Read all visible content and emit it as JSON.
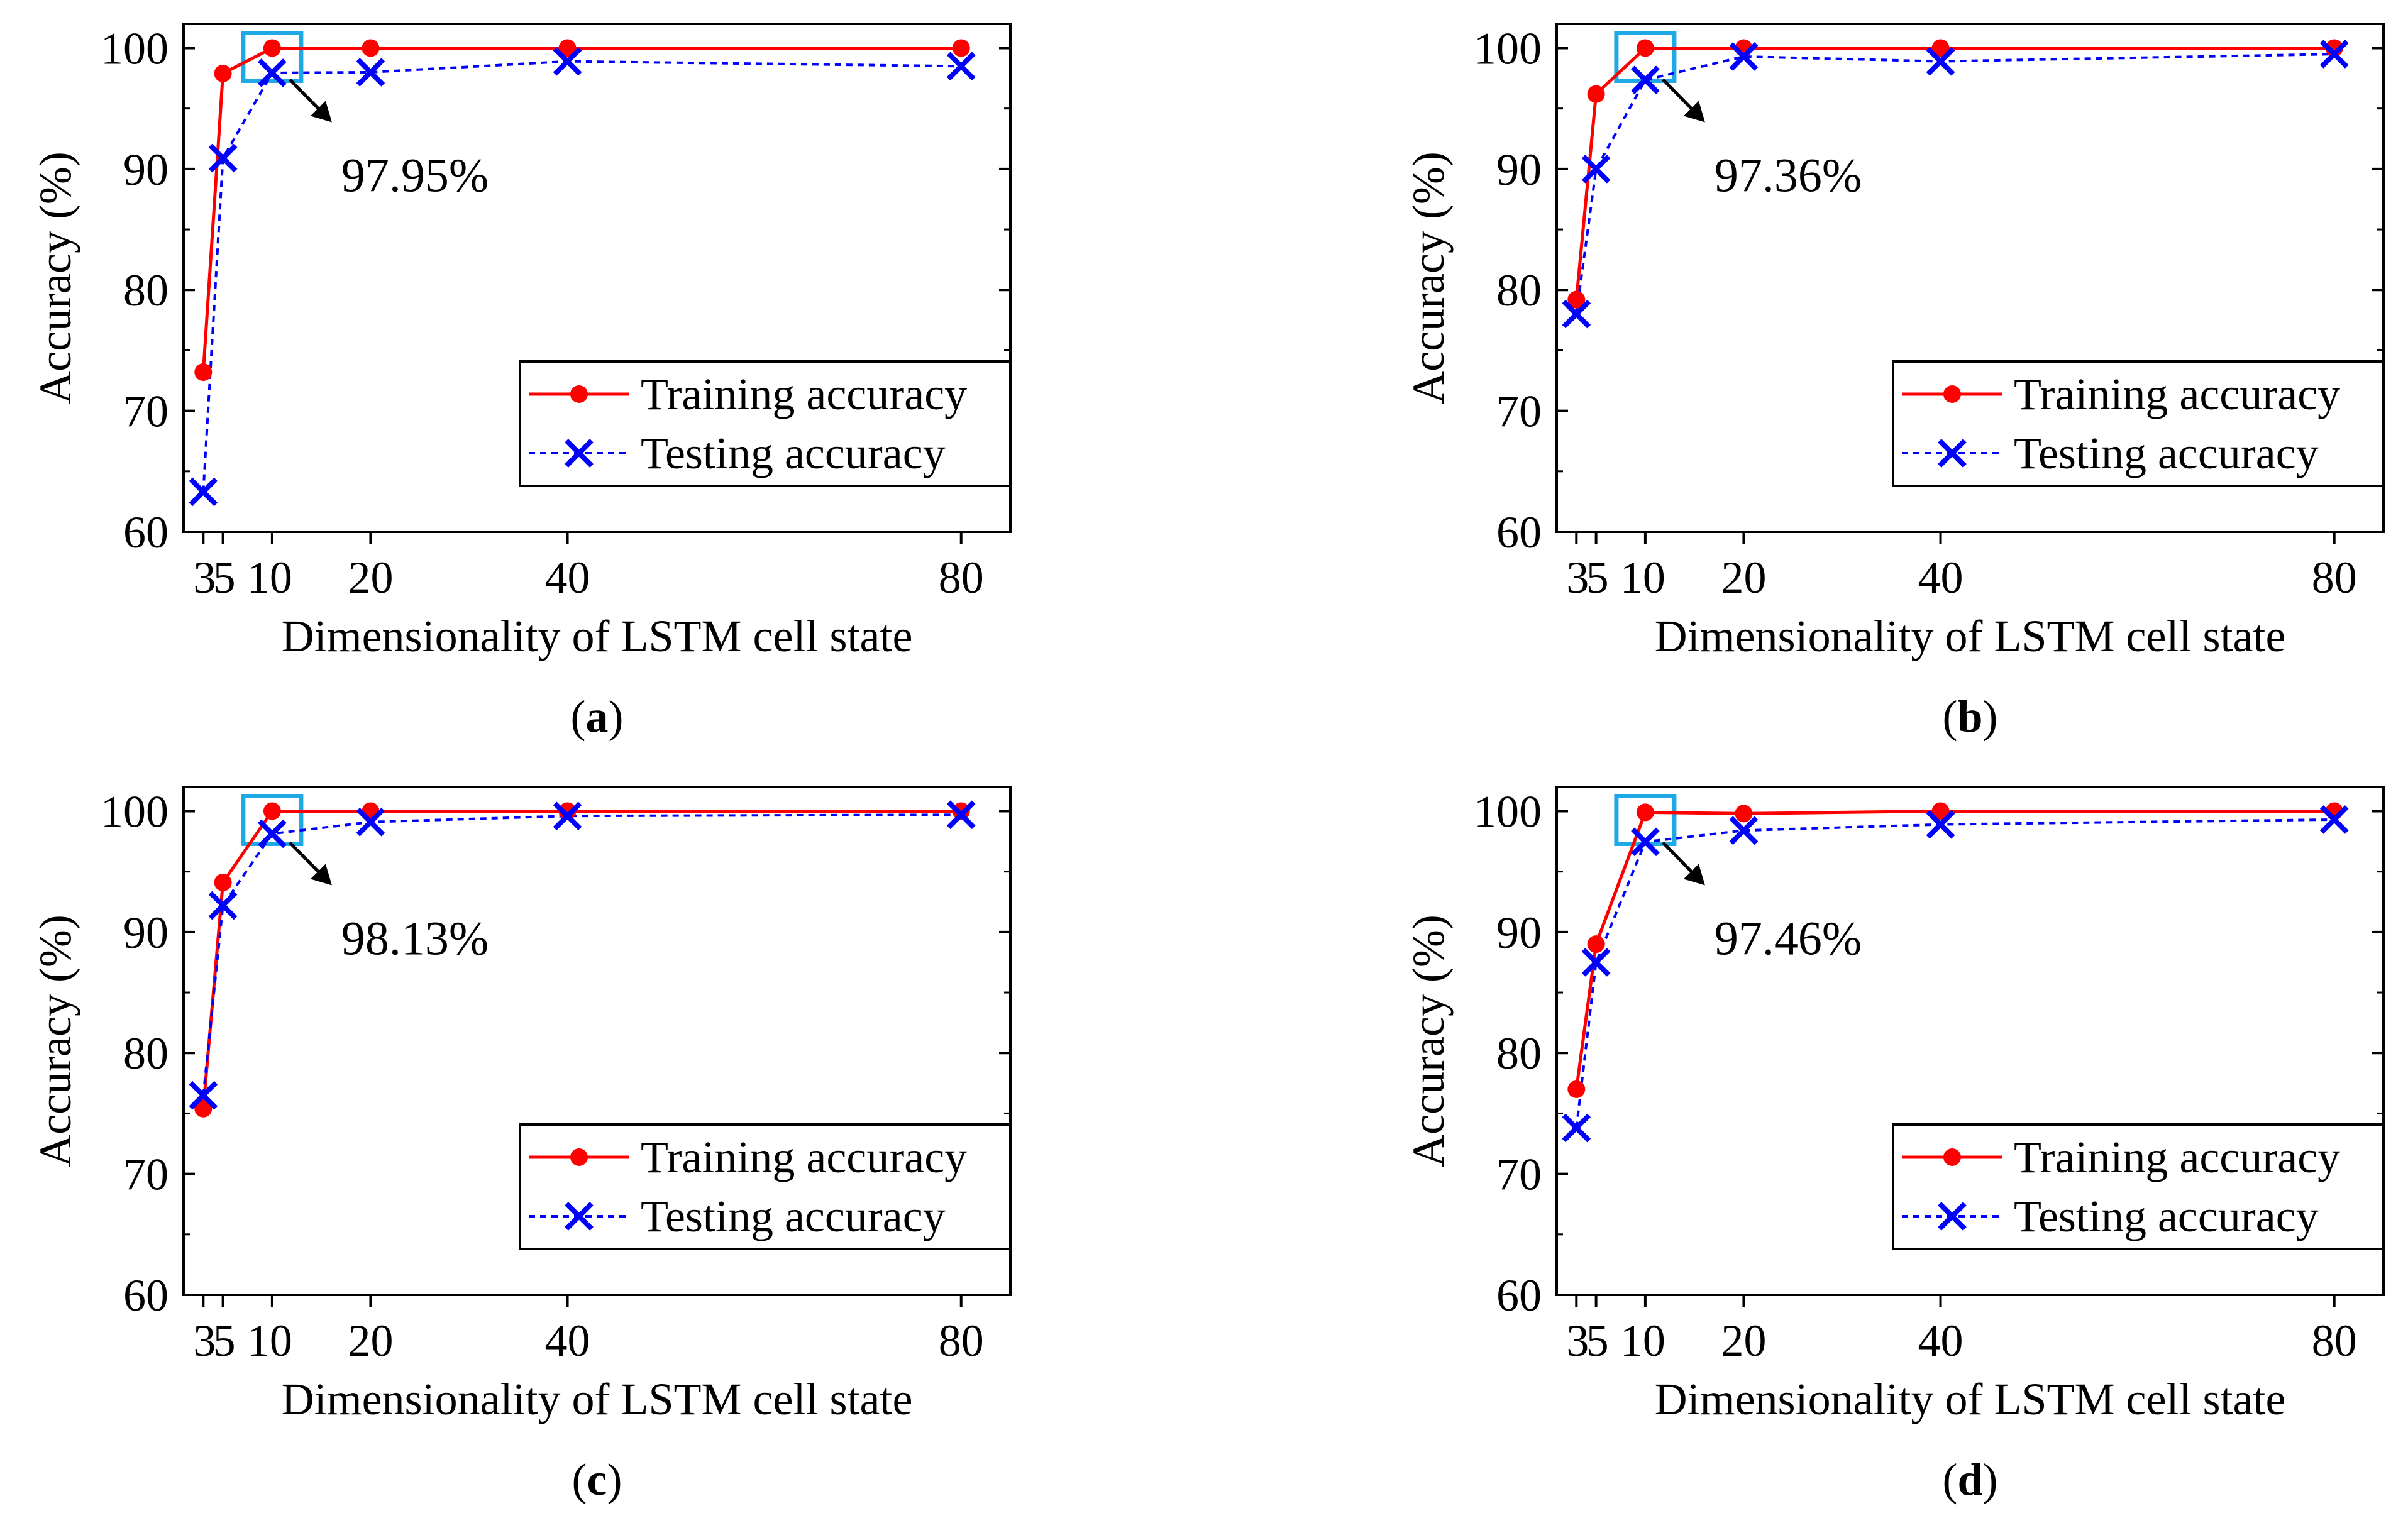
{
  "figure": {
    "colors": {
      "training": "#ff0000",
      "testing": "#0000ff",
      "highlight": "#1ea8e6",
      "axis": "#000000",
      "arrow": "#000000"
    },
    "legend": {
      "training_label": "Training accuracy",
      "testing_label": "Testing accuracy"
    }
  },
  "chart_data": [
    {
      "type": "line",
      "panel_label": "a",
      "xlabel": "Dimensionality of  LSTM cell state",
      "ylabel": "Accuracy (%)",
      "x": [
        3,
        5,
        10,
        20,
        40,
        80
      ],
      "xticks": [
        3,
        5,
        10,
        20,
        40,
        80
      ],
      "yticks": [
        60,
        70,
        80,
        90,
        100
      ],
      "xlim": [
        1,
        85
      ],
      "ylim": [
        60,
        102
      ],
      "series": [
        {
          "name": "Training accuracy",
          "values": [
            73.2,
            97.9,
            100.0,
            100.0,
            100.0,
            100.0
          ]
        },
        {
          "name": "Testing accuracy",
          "values": [
            63.3,
            90.9,
            97.95,
            98.0,
            98.9,
            98.5
          ]
        }
      ],
      "highlight_x": 10,
      "annotation": "97.95%",
      "legend_position": "bottom-right"
    },
    {
      "type": "line",
      "panel_label": "b",
      "xlabel": "Dimensionality of  LSTM cell state",
      "ylabel": "Accuracy (%)",
      "x": [
        3,
        5,
        10,
        20,
        40,
        80
      ],
      "xticks": [
        3,
        5,
        10,
        20,
        40,
        80
      ],
      "yticks": [
        60,
        70,
        80,
        90,
        100
      ],
      "xlim": [
        1,
        85
      ],
      "ylim": [
        60,
        102
      ],
      "series": [
        {
          "name": "Training accuracy",
          "values": [
            79.2,
            96.2,
            100.0,
            100.0,
            100.0,
            100.0
          ]
        },
        {
          "name": "Testing accuracy",
          "values": [
            78.0,
            90.0,
            97.36,
            99.3,
            98.9,
            99.5
          ]
        }
      ],
      "highlight_x": 10,
      "annotation": "97.36%",
      "legend_position": "bottom-right"
    },
    {
      "type": "line",
      "panel_label": "c",
      "xlabel": "Dimensionality of  LSTM cell state",
      "ylabel": "Accuracy (%)",
      "x": [
        3,
        5,
        10,
        20,
        40,
        80
      ],
      "xticks": [
        3,
        5,
        10,
        20,
        40,
        80
      ],
      "yticks": [
        60,
        70,
        80,
        90,
        100
      ],
      "xlim": [
        1,
        85
      ],
      "ylim": [
        60,
        102
      ],
      "series": [
        {
          "name": "Training accuracy",
          "values": [
            75.4,
            94.1,
            100.0,
            100.0,
            100.0,
            100.0
          ]
        },
        {
          "name": "Testing accuracy",
          "values": [
            76.5,
            92.2,
            98.13,
            99.1,
            99.6,
            99.7
          ]
        }
      ],
      "highlight_x": 10,
      "annotation": "98.13%",
      "legend_position": "bottom-right"
    },
    {
      "type": "line",
      "panel_label": "d",
      "xlabel": "Dimensionality of  LSTM cell state",
      "ylabel": "Accuracy (%)",
      "x": [
        3,
        5,
        10,
        20,
        40,
        80
      ],
      "xticks": [
        3,
        5,
        10,
        20,
        40,
        80
      ],
      "yticks": [
        60,
        70,
        80,
        90,
        100
      ],
      "xlim": [
        1,
        85
      ],
      "ylim": [
        60,
        102
      ],
      "series": [
        {
          "name": "Training accuracy",
          "values": [
            77.0,
            89.0,
            99.9,
            99.8,
            100.0,
            100.0
          ]
        },
        {
          "name": "Testing accuracy",
          "values": [
            73.8,
            87.5,
            97.46,
            98.4,
            98.9,
            99.3
          ]
        }
      ],
      "highlight_x": 10,
      "annotation": "97.46%",
      "legend_position": "bottom-right"
    }
  ]
}
